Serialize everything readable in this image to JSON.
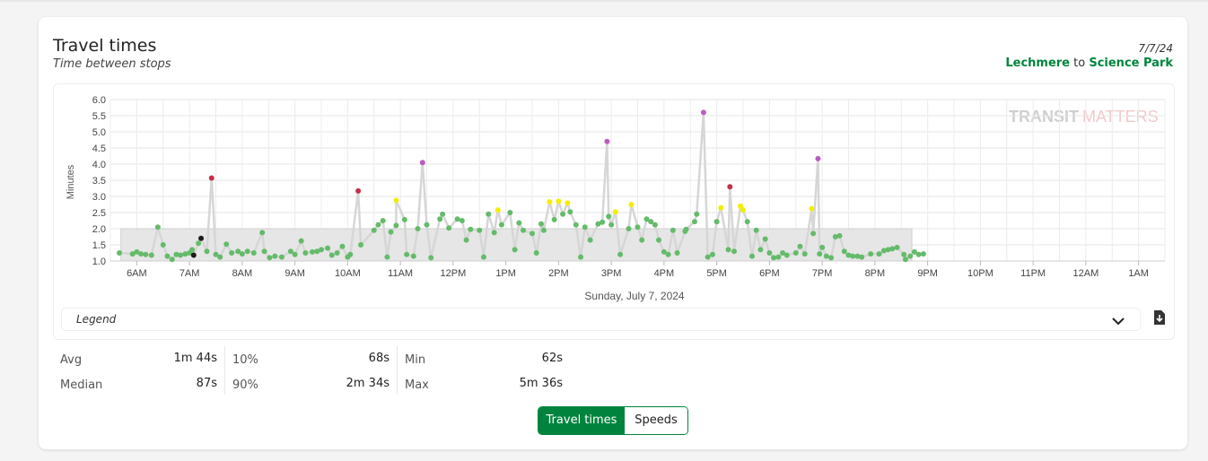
{
  "header": {
    "title": "Travel times",
    "subtitle": "Time between stops",
    "date": "7/7/24",
    "from_station": "Lechmere",
    "to_word": "to",
    "to_station": "Science Park"
  },
  "watermark": {
    "part1": "TRANSIT",
    "part2": "MATTERS"
  },
  "legend": {
    "label": "Legend"
  },
  "stats": {
    "avg_label": "Avg",
    "avg_value": "1m 44s",
    "median_label": "Median",
    "median_value": "87s",
    "p10_label": "10%",
    "p10_value": "68s",
    "p90_label": "90%",
    "p90_value": "2m 34s",
    "min_label": "Min",
    "min_value": "62s",
    "max_label": "Max",
    "max_value": "5m 36s"
  },
  "toggle": {
    "travel_times_label": "Travel times",
    "speeds_label": "Speeds"
  },
  "colors": {
    "brand_green": "#00843d",
    "normal": "#64bb6a",
    "slow": "#f5ed00",
    "slower": "#c33149",
    "slowest": "#bb5cc1",
    "fast": "#1c1c1c",
    "benchmark_band": "#e6e6e6",
    "trend_line": "#d6d6d6"
  },
  "chart_data": {
    "type": "scatter",
    "xlabel": "Sunday, July 7, 2024",
    "ylabel": "Minutes",
    "ylim": [
      1.0,
      6.0
    ],
    "yticks": [
      "1.0",
      "1.5",
      "2.0",
      "2.5",
      "3.0",
      "3.5",
      "4.0",
      "4.5",
      "5.0",
      "5.5",
      "6.0"
    ],
    "x_start_hour": 5.5,
    "x_end_hour": 25.5,
    "xticks": [
      {
        "h": 6,
        "label": "6AM"
      },
      {
        "h": 7,
        "label": "7AM"
      },
      {
        "h": 8,
        "label": "8AM"
      },
      {
        "h": 9,
        "label": "9AM"
      },
      {
        "h": 10,
        "label": "10AM"
      },
      {
        "h": 11,
        "label": "11AM"
      },
      {
        "h": 12,
        "label": "12PM"
      },
      {
        "h": 13,
        "label": "1PM"
      },
      {
        "h": 14,
        "label": "2PM"
      },
      {
        "h": 15,
        "label": "3PM"
      },
      {
        "h": 16,
        "label": "4PM"
      },
      {
        "h": 17,
        "label": "5PM"
      },
      {
        "h": 18,
        "label": "6PM"
      },
      {
        "h": 19,
        "label": "7PM"
      },
      {
        "h": 20,
        "label": "8PM"
      },
      {
        "h": 21,
        "label": "9PM"
      },
      {
        "h": 22,
        "label": "10PM"
      },
      {
        "h": 23,
        "label": "11PM"
      },
      {
        "h": 24,
        "label": "12AM"
      },
      {
        "h": 25,
        "label": "1AM"
      }
    ],
    "benchmark_band": {
      "x_start_hour": 5.7,
      "x_end_hour": 20.7,
      "y_min": 1.0,
      "y_max": 2.0
    },
    "grid": true,
    "points": [
      [
        5.67,
        1.25,
        "n"
      ],
      [
        5.92,
        1.22,
        "n"
      ],
      [
        6.0,
        1.28,
        "n"
      ],
      [
        6.08,
        1.22,
        "n"
      ],
      [
        6.17,
        1.2,
        "n"
      ],
      [
        6.28,
        1.18,
        "n"
      ],
      [
        6.4,
        2.05,
        "n"
      ],
      [
        6.5,
        1.5,
        "n"
      ],
      [
        6.58,
        1.15,
        "n"
      ],
      [
        6.67,
        1.05,
        "n"
      ],
      [
        6.75,
        1.2,
        "n"
      ],
      [
        6.83,
        1.18,
        "n"
      ],
      [
        6.92,
        1.22,
        "n"
      ],
      [
        7.0,
        1.25,
        "n"
      ],
      [
        7.05,
        1.35,
        "n"
      ],
      [
        7.08,
        1.18,
        "f"
      ],
      [
        7.17,
        1.55,
        "n"
      ],
      [
        7.22,
        1.7,
        "f"
      ],
      [
        7.33,
        1.3,
        "n"
      ],
      [
        7.42,
        3.57,
        "r"
      ],
      [
        7.5,
        1.2,
        "n"
      ],
      [
        7.58,
        1.12,
        "n"
      ],
      [
        7.7,
        1.52,
        "n"
      ],
      [
        7.8,
        1.25,
        "n"
      ],
      [
        7.92,
        1.3,
        "n"
      ],
      [
        8.0,
        1.22,
        "n"
      ],
      [
        8.1,
        1.3,
        "n"
      ],
      [
        8.22,
        1.25,
        "n"
      ],
      [
        8.38,
        1.88,
        "n"
      ],
      [
        8.42,
        1.3,
        "n"
      ],
      [
        8.52,
        1.1,
        "n"
      ],
      [
        8.62,
        1.15,
        "n"
      ],
      [
        8.75,
        1.12,
        "n"
      ],
      [
        8.92,
        1.3,
        "n"
      ],
      [
        9.0,
        1.2,
        "n"
      ],
      [
        9.12,
        1.62,
        "n"
      ],
      [
        9.2,
        1.25,
        "n"
      ],
      [
        9.33,
        1.28,
        "n"
      ],
      [
        9.42,
        1.3,
        "n"
      ],
      [
        9.5,
        1.35,
        "n"
      ],
      [
        9.62,
        1.4,
        "n"
      ],
      [
        9.7,
        1.18,
        "n"
      ],
      [
        9.8,
        1.25,
        "n"
      ],
      [
        9.9,
        1.45,
        "n"
      ],
      [
        10.0,
        1.12,
        "n"
      ],
      [
        10.05,
        1.2,
        "n"
      ],
      [
        10.2,
        3.17,
        "r"
      ],
      [
        10.25,
        1.5,
        "n"
      ],
      [
        10.5,
        1.95,
        "n"
      ],
      [
        10.58,
        2.12,
        "n"
      ],
      [
        10.67,
        2.25,
        "n"
      ],
      [
        10.75,
        1.12,
        "n"
      ],
      [
        10.82,
        1.9,
        "n"
      ],
      [
        10.92,
        2.1,
        "n"
      ],
      [
        10.92,
        2.88,
        "y"
      ],
      [
        11.08,
        2.28,
        "n"
      ],
      [
        11.12,
        1.2,
        "n"
      ],
      [
        11.25,
        1.15,
        "n"
      ],
      [
        11.33,
        2.0,
        "n"
      ],
      [
        11.42,
        4.05,
        "p"
      ],
      [
        11.5,
        2.12,
        "n"
      ],
      [
        11.58,
        1.1,
        "n"
      ],
      [
        11.75,
        2.3,
        "n"
      ],
      [
        11.8,
        2.45,
        "n"
      ],
      [
        11.92,
        2.02,
        "n"
      ],
      [
        12.08,
        2.3,
        "n"
      ],
      [
        12.17,
        2.25,
        "n"
      ],
      [
        12.25,
        1.65,
        "n"
      ],
      [
        12.33,
        1.98,
        "n"
      ],
      [
        12.5,
        1.95,
        "n"
      ],
      [
        12.58,
        1.12,
        "n"
      ],
      [
        12.67,
        2.45,
        "n"
      ],
      [
        12.78,
        1.88,
        "n"
      ],
      [
        12.85,
        2.58,
        "y"
      ],
      [
        12.92,
        2.12,
        "n"
      ],
      [
        13.08,
        2.5,
        "n"
      ],
      [
        13.17,
        1.35,
        "n"
      ],
      [
        13.25,
        2.18,
        "n"
      ],
      [
        13.33,
        1.95,
        "n"
      ],
      [
        13.5,
        1.85,
        "n"
      ],
      [
        13.58,
        1.25,
        "n"
      ],
      [
        13.67,
        2.15,
        "n"
      ],
      [
        13.72,
        1.95,
        "n"
      ],
      [
        13.83,
        2.83,
        "y"
      ],
      [
        13.92,
        2.28,
        "n"
      ],
      [
        14.0,
        2.85,
        "y"
      ],
      [
        14.08,
        2.45,
        "n"
      ],
      [
        14.17,
        2.8,
        "y"
      ],
      [
        14.22,
        2.52,
        "n"
      ],
      [
        14.33,
        2.12,
        "n"
      ],
      [
        14.42,
        1.12,
        "n"
      ],
      [
        14.5,
        2.05,
        "n"
      ],
      [
        14.6,
        1.65,
        "n"
      ],
      [
        14.75,
        2.15,
        "n"
      ],
      [
        14.83,
        2.2,
        "n"
      ],
      [
        14.92,
        4.7,
        "p"
      ],
      [
        14.95,
        2.38,
        "n"
      ],
      [
        15.0,
        2.12,
        "n"
      ],
      [
        15.08,
        2.52,
        "y"
      ],
      [
        15.17,
        1.2,
        "n"
      ],
      [
        15.33,
        2.0,
        "n"
      ],
      [
        15.38,
        2.75,
        "y"
      ],
      [
        15.5,
        2.05,
        "n"
      ],
      [
        15.58,
        1.65,
        "n"
      ],
      [
        15.67,
        2.3,
        "n"
      ],
      [
        15.75,
        2.22,
        "n"
      ],
      [
        15.83,
        2.12,
        "n"
      ],
      [
        15.9,
        1.65,
        "n"
      ],
      [
        16.0,
        1.28,
        "n"
      ],
      [
        16.08,
        1.2,
        "n"
      ],
      [
        16.17,
        1.95,
        "n"
      ],
      [
        16.25,
        1.25,
        "n"
      ],
      [
        16.4,
        1.92,
        "n"
      ],
      [
        16.42,
        1.98,
        "n"
      ],
      [
        16.58,
        2.22,
        "n"
      ],
      [
        16.62,
        2.45,
        "n"
      ],
      [
        16.75,
        5.6,
        "p"
      ],
      [
        16.83,
        1.12,
        "n"
      ],
      [
        16.92,
        1.2,
        "n"
      ],
      [
        17.0,
        2.22,
        "n"
      ],
      [
        17.08,
        2.65,
        "y"
      ],
      [
        17.22,
        1.35,
        "n"
      ],
      [
        17.25,
        3.3,
        "r"
      ],
      [
        17.33,
        1.3,
        "n"
      ],
      [
        17.45,
        2.7,
        "y"
      ],
      [
        17.5,
        2.58,
        "y"
      ],
      [
        17.58,
        2.22,
        "n"
      ],
      [
        17.67,
        1.15,
        "n"
      ],
      [
        17.75,
        1.95,
        "n"
      ],
      [
        17.83,
        1.35,
        "n"
      ],
      [
        17.92,
        1.68,
        "n"
      ],
      [
        18.0,
        1.25,
        "n"
      ],
      [
        18.08,
        1.1,
        "n"
      ],
      [
        18.17,
        1.12,
        "n"
      ],
      [
        18.25,
        1.25,
        "n"
      ],
      [
        18.33,
        1.18,
        "n"
      ],
      [
        18.5,
        1.25,
        "n"
      ],
      [
        18.58,
        1.45,
        "n"
      ],
      [
        18.67,
        1.22,
        "n"
      ],
      [
        18.8,
        2.62,
        "y"
      ],
      [
        18.83,
        1.85,
        "n"
      ],
      [
        18.92,
        4.17,
        "p"
      ],
      [
        18.95,
        1.22,
        "n"
      ],
      [
        19.0,
        1.42,
        "n"
      ],
      [
        19.08,
        1.15,
        "n"
      ],
      [
        19.17,
        1.1,
        "n"
      ],
      [
        19.25,
        1.75,
        "n"
      ],
      [
        19.33,
        1.78,
        "n"
      ],
      [
        19.42,
        1.3,
        "n"
      ],
      [
        19.5,
        1.18,
        "n"
      ],
      [
        19.58,
        1.15,
        "n"
      ],
      [
        19.67,
        1.15,
        "n"
      ],
      [
        19.75,
        1.12,
        "n"
      ],
      [
        19.92,
        1.22,
        "n"
      ],
      [
        20.08,
        1.22,
        "n"
      ],
      [
        20.17,
        1.32,
        "n"
      ],
      [
        20.25,
        1.35,
        "n"
      ],
      [
        20.33,
        1.38,
        "n"
      ],
      [
        20.42,
        1.42,
        "n"
      ],
      [
        20.55,
        1.2,
        "n"
      ],
      [
        20.58,
        1.05,
        "n"
      ],
      [
        20.67,
        1.15,
        "n"
      ],
      [
        20.75,
        1.28,
        "n"
      ],
      [
        20.83,
        1.2,
        "n"
      ],
      [
        20.92,
        1.22,
        "n"
      ]
    ]
  }
}
